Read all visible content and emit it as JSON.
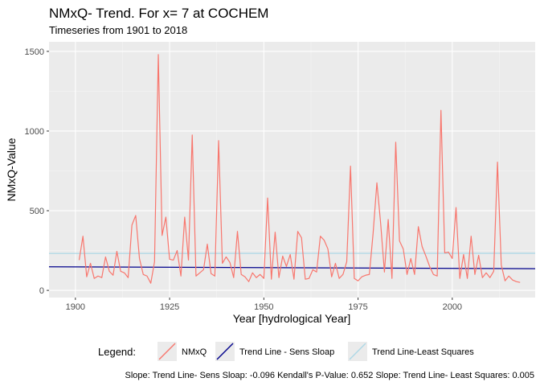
{
  "chart_data": {
    "type": "line",
    "title": "NMxQ- Trend. For x= 7 at COCHEM",
    "subtitle": "Timeseries from 1901 to 2018",
    "xlabel": "Year [hydrological Year]",
    "ylabel": "NMxQ-Value",
    "xlim": [
      1893,
      2022
    ],
    "ylim": [
      -45,
      1560
    ],
    "x_ticks": [
      1900,
      1925,
      1950,
      1975,
      2000
    ],
    "y_ticks": [
      0,
      500,
      1000,
      1500
    ],
    "grid": true,
    "legend_title": "Legend:",
    "legend_position": "bottom",
    "caption": "Slope: Trend Line- Sens Sloap: -0.096 Kendall's P-Value: 0.652 Slope: Trend Line- Least Squares: 0.005",
    "series": [
      {
        "name": "NMxQ",
        "color": "#F8766D",
        "kind": "data",
        "x": [
          1901,
          1902,
          1903,
          1904,
          1905,
          1906,
          1907,
          1908,
          1909,
          1910,
          1911,
          1912,
          1913,
          1914,
          1915,
          1916,
          1917,
          1918,
          1919,
          1920,
          1921,
          1922,
          1923,
          1924,
          1925,
          1926,
          1927,
          1928,
          1929,
          1930,
          1931,
          1932,
          1933,
          1934,
          1935,
          1936,
          1937,
          1938,
          1939,
          1940,
          1941,
          1942,
          1943,
          1944,
          1945,
          1946,
          1947,
          1948,
          1949,
          1950,
          1951,
          1952,
          1953,
          1954,
          1955,
          1956,
          1957,
          1958,
          1959,
          1960,
          1961,
          1962,
          1963,
          1964,
          1965,
          1966,
          1967,
          1968,
          1969,
          1970,
          1971,
          1972,
          1973,
          1974,
          1975,
          1976,
          1977,
          1978,
          1979,
          1980,
          1981,
          1982,
          1983,
          1984,
          1985,
          1986,
          1987,
          1988,
          1989,
          1990,
          1991,
          1992,
          1993,
          1994,
          1995,
          1996,
          1997,
          1998,
          1999,
          2000,
          2001,
          2002,
          2003,
          2004,
          2005,
          2006,
          2007,
          2008,
          2009,
          2010,
          2011,
          2012,
          2013,
          2014,
          2015,
          2016,
          2017,
          2018
        ],
        "y": [
          190,
          340,
          85,
          170,
          75,
          90,
          80,
          210,
          120,
          95,
          245,
          120,
          110,
          80,
          410,
          470,
          200,
          100,
          90,
          45,
          180,
          1480,
          345,
          460,
          195,
          190,
          250,
          90,
          460,
          190,
          975,
          90,
          110,
          130,
          290,
          105,
          90,
          940,
          170,
          210,
          175,
          80,
          370,
          100,
          85,
          55,
          110,
          80,
          100,
          75,
          580,
          70,
          365,
          80,
          215,
          150,
          225,
          70,
          370,
          330,
          70,
          75,
          130,
          115,
          340,
          315,
          260,
          85,
          170,
          75,
          100,
          180,
          780,
          75,
          60,
          85,
          95,
          100,
          360,
          675,
          420,
          115,
          445,
          75,
          930,
          310,
          260,
          100,
          200,
          100,
          400,
          275,
          215,
          150,
          100,
          90,
          1130,
          235,
          240,
          200,
          520,
          75,
          225,
          75,
          340,
          100,
          220,
          80,
          110,
          80,
          120,
          805,
          160,
          60,
          90,
          65,
          55,
          50
        ]
      },
      {
        "name": "Trend Line - Sens Sloap",
        "color": "#00008B",
        "kind": "line",
        "x": [
          1893,
          2022
        ],
        "y": [
          148,
          136
        ]
      },
      {
        "name": "Trend Line-Least Squares",
        "color": "#ADD8E6",
        "kind": "line",
        "x": [
          1893,
          2022
        ],
        "y": [
          232,
          233
        ]
      }
    ]
  }
}
